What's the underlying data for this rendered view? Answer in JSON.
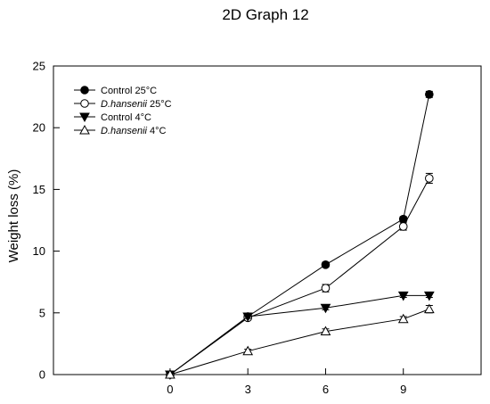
{
  "chart_data": {
    "type": "line",
    "title": "2D Graph 12",
    "xlabel": "",
    "ylabel": "Weight loss (%)",
    "xlim": [
      -4.5,
      12
    ],
    "ylim": [
      0,
      25
    ],
    "xticks": [
      0,
      3,
      6,
      9
    ],
    "yticks": [
      0,
      5,
      10,
      15,
      20,
      25
    ],
    "grid": false,
    "legend_position": "top-left",
    "series": [
      {
        "name": "Control 25°C",
        "name_italic": "",
        "name_rest": "Control 25°C",
        "marker": "filled-circle",
        "x": [
          0,
          3,
          6,
          9,
          10
        ],
        "y": [
          0,
          4.7,
          8.9,
          12.6,
          22.7
        ],
        "err": [
          0.1,
          0.15,
          0.2,
          0.2,
          0.25
        ]
      },
      {
        "name": "D.hansenii 25°C",
        "name_italic": "D.hansenii",
        "name_rest": " 25°C",
        "marker": "open-circle",
        "x": [
          0,
          3,
          6,
          9,
          10
        ],
        "y": [
          0,
          4.6,
          7.0,
          12.0,
          15.9
        ],
        "err": [
          0.1,
          0.15,
          0.3,
          0.3,
          0.4
        ]
      },
      {
        "name": "Control 4°C",
        "name_italic": "",
        "name_rest": "Control 4°C",
        "marker": "filled-triangle-down",
        "x": [
          0,
          3,
          6,
          9,
          10
        ],
        "y": [
          0,
          4.7,
          5.4,
          6.4,
          6.4
        ],
        "err": [
          0.1,
          0.15,
          0.15,
          0.15,
          0.15
        ]
      },
      {
        "name": "D.hansenii 4°C",
        "name_italic": "D.hansenii",
        "name_rest": " 4°C",
        "marker": "open-triangle-up",
        "x": [
          0,
          3,
          6,
          9,
          10
        ],
        "y": [
          0,
          1.9,
          3.5,
          4.5,
          5.3
        ],
        "err": [
          0.1,
          0.15,
          0.2,
          0.2,
          0.3
        ]
      }
    ]
  }
}
